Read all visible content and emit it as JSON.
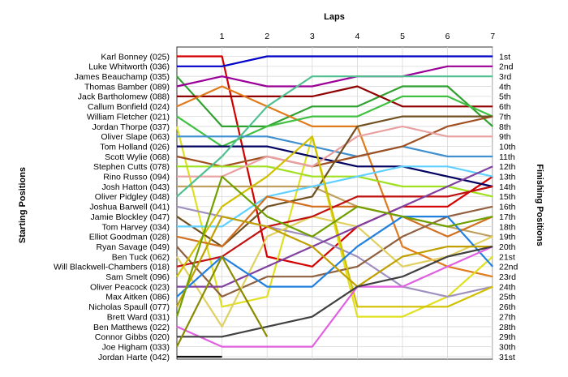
{
  "chart_data": {
    "type": "line",
    "title": "",
    "xlabel": "Laps",
    "ylabel_left": "Starting Positions",
    "ylabel_right": "Finishing Positions",
    "laps": [
      1,
      2,
      3,
      4,
      5,
      6,
      7
    ],
    "finishing_labels": [
      "1st",
      "2nd",
      "3rd",
      "4th",
      "5th",
      "6th",
      "7th",
      "8th",
      "9th",
      "10th",
      "11th",
      "12th",
      "13th",
      "14th",
      "15th",
      "16th",
      "17th",
      "18th",
      "19th",
      "20th",
      "21st",
      "22nd",
      "23rd",
      "24th",
      "25th",
      "26th",
      "27th",
      "28th",
      "29th",
      "30th",
      "31st"
    ],
    "grid": true,
    "series": [
      {
        "name": "Karl Bonney (025)",
        "color": "#d40000",
        "positions": [
          1,
          1,
          21,
          22,
          18,
          16,
          16,
          13
        ]
      },
      {
        "name": "Luke Whitworth (036)",
        "color": "#0000c8",
        "positions": [
          2,
          2,
          1,
          1,
          1,
          1,
          1,
          1
        ]
      },
      {
        "name": "James Beauchamp (035)",
        "color": "#30a030",
        "positions": [
          3,
          8,
          8,
          6,
          6,
          4,
          4,
          8
        ]
      },
      {
        "name": "Thomas Bamber (089)",
        "color": "#9a0098",
        "positions": [
          4,
          3,
          4,
          4,
          3,
          3,
          2,
          2
        ]
      },
      {
        "name": "Jack Bartholomew (088)",
        "color": "#900000",
        "positions": [
          5,
          5,
          5,
          5,
          4,
          6,
          6,
          6
        ]
      },
      {
        "name": "Callum Bonfield (024)",
        "color": "#e07a1a",
        "positions": [
          6,
          4,
          6,
          8,
          8,
          20,
          22,
          23
        ]
      },
      {
        "name": "William Fletcher (021)",
        "color": "#40c040",
        "positions": [
          7,
          10,
          8,
          7,
          7,
          5,
          5,
          7
        ]
      },
      {
        "name": "Jordan Thorpe (037)",
        "color": "#e0e020",
        "positions": [
          8,
          26,
          25,
          9,
          27,
          27,
          25,
          21
        ]
      },
      {
        "name": "Oliver Slape (063)",
        "color": "#4090d0",
        "positions": [
          9,
          9,
          9,
          10,
          11,
          10,
          11,
          11
        ]
      },
      {
        "name": "Tom Holland (026)",
        "color": "#000060",
        "positions": [
          10,
          10,
          10,
          11,
          12,
          12,
          13,
          14
        ]
      },
      {
        "name": "Scott Wylie (068)",
        "color": "#a05020",
        "positions": [
          11,
          12,
          11,
          12,
          11,
          10,
          8,
          7
        ]
      },
      {
        "name": "Stephen Cutts (078)",
        "color": "#a0e020",
        "positions": [
          12,
          12,
          12,
          13,
          13,
          14,
          14,
          15
        ]
      },
      {
        "name": "Rino Russo (094)",
        "color": "#e8a0a0",
        "positions": [
          13,
          13,
          11,
          12,
          9,
          8,
          9,
          9
        ]
      },
      {
        "name": "Josh Hatton (043)",
        "color": "#c0a060",
        "positions": [
          14,
          14,
          14,
          14,
          16,
          17,
          18,
          19
        ]
      },
      {
        "name": "Oliver Pidgley (048)",
        "color": "#50c090",
        "positions": [
          15,
          11,
          6,
          3,
          3,
          3,
          3,
          3
        ]
      },
      {
        "name": "Joshua Barwell (041)",
        "color": "#a090c0",
        "positions": [
          16,
          17,
          18,
          19,
          21,
          24,
          25,
          24
        ]
      },
      {
        "name": "Jamie Blockley (047)",
        "color": "#705020",
        "positions": [
          17,
          20,
          16,
          15,
          8,
          7,
          7,
          7
        ]
      },
      {
        "name": "Tom Harvey (034)",
        "color": "#60d0ff",
        "positions": [
          18,
          18,
          15,
          14,
          13,
          12,
          12,
          13
        ]
      },
      {
        "name": "Elliot Goodman (028)",
        "color": "#d07020",
        "positions": [
          19,
          20,
          15,
          16,
          16,
          17,
          19,
          17
        ]
      },
      {
        "name": "Ryan Savage (049)",
        "color": "#906040",
        "positions": [
          20,
          25,
          23,
          23,
          22,
          19,
          17,
          16
        ]
      },
      {
        "name": "Ben Tuck (062)",
        "color": "#e0d060",
        "positions": [
          21,
          28,
          19,
          17,
          18,
          22,
          21,
          19
        ]
      },
      {
        "name": "Will Blackwell-Chambers (018)",
        "color": "#c01010",
        "positions": [
          22,
          21,
          18,
          17,
          15,
          15,
          15,
          14
        ]
      },
      {
        "name": "Sam Smelt (096)",
        "color": "#d0c000",
        "positions": [
          23,
          16,
          13,
          9,
          26,
          26,
          26,
          24
        ]
      },
      {
        "name": "Oliver Peacock (023)",
        "color": "#8040a0",
        "positions": [
          24,
          24,
          22,
          20,
          18,
          16,
          14,
          12
        ]
      },
      {
        "name": "Max Aitken (086)",
        "color": "#2080e0",
        "positions": [
          25,
          21,
          24,
          24,
          20,
          17,
          17,
          22
        ]
      },
      {
        "name": "Nicholas Spaull (077)",
        "color": "#c0a000",
        "positions": [
          26,
          17,
          18,
          20,
          24,
          21,
          20,
          20
        ]
      },
      {
        "name": "Brett Ward (031)",
        "color": "#70a000",
        "positions": [
          27,
          13,
          17,
          19,
          16,
          17,
          18,
          17
        ]
      },
      {
        "name": "Ben Matthews (022)",
        "color": "#e060e0",
        "positions": [
          28,
          30,
          30,
          30,
          24,
          24,
          22,
          20
        ]
      },
      {
        "name": "Connor Gibbs (020)",
        "color": "#404040",
        "positions": [
          29,
          29,
          28,
          27,
          24,
          23,
          21,
          20
        ]
      },
      {
        "name": "Joe Higham (033)",
        "color": "#8a8a00",
        "positions": [
          30,
          21,
          29,
          null,
          null,
          null,
          null,
          null
        ]
      },
      {
        "name": "Jordan Harte (042)",
        "color": "#101010",
        "positions": [
          31,
          31,
          null,
          null,
          null,
          null,
          null,
          null
        ]
      }
    ]
  }
}
